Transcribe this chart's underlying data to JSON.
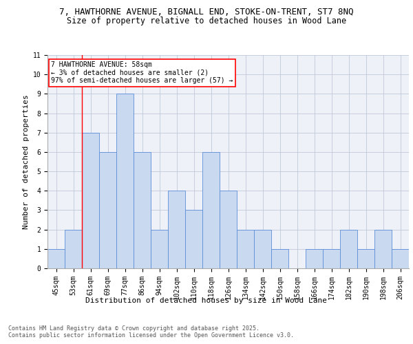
{
  "title_line1": "7, HAWTHORNE AVENUE, BIGNALL END, STOKE-ON-TRENT, ST7 8NQ",
  "title_line2": "Size of property relative to detached houses in Wood Lane",
  "xlabel": "Distribution of detached houses by size in Wood Lane",
  "ylabel": "Number of detached properties",
  "categories": [
    "45sqm",
    "53sqm",
    "61sqm",
    "69sqm",
    "77sqm",
    "86sqm",
    "94sqm",
    "102sqm",
    "110sqm",
    "118sqm",
    "126sqm",
    "134sqm",
    "142sqm",
    "150sqm",
    "158sqm",
    "166sqm",
    "174sqm",
    "182sqm",
    "190sqm",
    "198sqm",
    "206sqm"
  ],
  "values": [
    1,
    2,
    7,
    6,
    9,
    6,
    2,
    4,
    3,
    6,
    4,
    2,
    2,
    1,
    0,
    1,
    1,
    2,
    1,
    2,
    1
  ],
  "ylim": [
    0,
    11
  ],
  "yticks": [
    0,
    1,
    2,
    3,
    4,
    5,
    6,
    7,
    8,
    9,
    10,
    11
  ],
  "bar_color": "#c9d9f0",
  "bar_edge_color": "#5b8dd9",
  "grid_color": "#c0c8d8",
  "bg_color": "#eef2f8",
  "annotation_text": "7 HAWTHORNE AVENUE: 58sqm\n← 3% of detached houses are smaller (2)\n97% of semi-detached houses are larger (57) →",
  "vline_x_index": 1.5,
  "footer_line1": "Contains HM Land Registry data © Crown copyright and database right 2025.",
  "footer_line2": "Contains public sector information licensed under the Open Government Licence v3.0.",
  "title_fontsize": 9,
  "subtitle_fontsize": 8.5,
  "axis_label_fontsize": 8,
  "tick_fontsize": 7,
  "annotation_fontsize": 7,
  "footer_fontsize": 6
}
